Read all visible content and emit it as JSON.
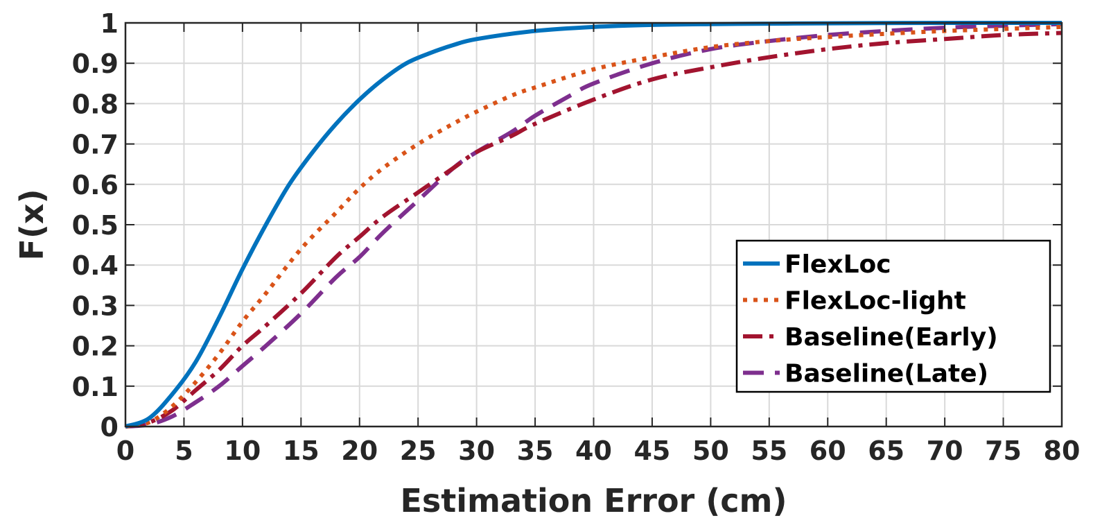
{
  "chart_data": {
    "type": "line",
    "title": "",
    "xlabel": "Estimation Error (cm)",
    "ylabel": "F(x)",
    "xlim": [
      0,
      80
    ],
    "ylim": [
      0,
      1
    ],
    "xticks": [
      0,
      5,
      10,
      15,
      20,
      25,
      30,
      35,
      40,
      45,
      50,
      55,
      60,
      65,
      70,
      75,
      80
    ],
    "yticks": [
      0,
      0.1,
      0.2,
      0.3,
      0.4,
      0.5,
      0.6,
      0.7,
      0.8,
      0.9,
      1
    ],
    "ytick_labels": [
      "0",
      "0.1",
      "0.2",
      "0.3",
      "0.4",
      "0.5",
      "0.6",
      "0.7",
      "0.8",
      "0.9",
      "1"
    ],
    "grid": true,
    "legend_position": "lower-right",
    "series": [
      {
        "name": "FlexLoc",
        "color": "#0072BD",
        "style": "solid",
        "x": [
          0,
          2,
          4,
          6,
          8,
          10,
          12,
          14,
          16,
          18,
          20,
          22,
          24,
          26,
          28,
          30,
          35,
          40,
          45,
          50,
          55,
          60,
          70,
          80
        ],
        "y": [
          0,
          0.02,
          0.08,
          0.16,
          0.27,
          0.39,
          0.5,
          0.6,
          0.68,
          0.75,
          0.81,
          0.86,
          0.9,
          0.925,
          0.945,
          0.96,
          0.98,
          0.99,
          0.995,
          0.997,
          0.998,
          0.999,
          1,
          1
        ]
      },
      {
        "name": "FlexLoc-light",
        "color": "#D95319",
        "style": "dotted",
        "x": [
          0,
          2,
          4,
          6,
          8,
          10,
          12,
          15,
          18,
          20,
          22,
          25,
          28,
          30,
          33,
          35,
          40,
          45,
          50,
          55,
          60,
          65,
          70,
          75,
          80
        ],
        "y": [
          0,
          0.01,
          0.05,
          0.11,
          0.18,
          0.26,
          0.33,
          0.44,
          0.53,
          0.59,
          0.64,
          0.7,
          0.75,
          0.78,
          0.82,
          0.84,
          0.885,
          0.915,
          0.94,
          0.955,
          0.965,
          0.973,
          0.98,
          0.985,
          0.99
        ]
      },
      {
        "name": "Baseline(Early)",
        "color": "#A2142F",
        "style": "dashdot",
        "x": [
          0,
          2,
          4,
          6,
          8,
          10,
          12,
          15,
          18,
          20,
          22,
          25,
          28,
          30,
          33,
          35,
          40,
          45,
          50,
          55,
          60,
          65,
          70,
          75,
          80
        ],
        "y": [
          0,
          0.01,
          0.04,
          0.09,
          0.14,
          0.2,
          0.25,
          0.33,
          0.42,
          0.47,
          0.52,
          0.58,
          0.64,
          0.68,
          0.72,
          0.75,
          0.81,
          0.86,
          0.89,
          0.915,
          0.935,
          0.95,
          0.96,
          0.97,
          0.975
        ]
      },
      {
        "name": "Baseline(Late)",
        "color": "#7E2F8E",
        "style": "dashed",
        "x": [
          0,
          2,
          4,
          6,
          8,
          10,
          12,
          15,
          18,
          20,
          22,
          25,
          28,
          30,
          33,
          35,
          38,
          40,
          45,
          50,
          55,
          60,
          65,
          70,
          75,
          80
        ],
        "y": [
          0,
          0.005,
          0.025,
          0.06,
          0.1,
          0.15,
          0.2,
          0.28,
          0.37,
          0.42,
          0.48,
          0.56,
          0.64,
          0.68,
          0.73,
          0.77,
          0.82,
          0.85,
          0.9,
          0.935,
          0.955,
          0.97,
          0.98,
          0.988,
          0.993,
          0.997
        ]
      }
    ]
  }
}
